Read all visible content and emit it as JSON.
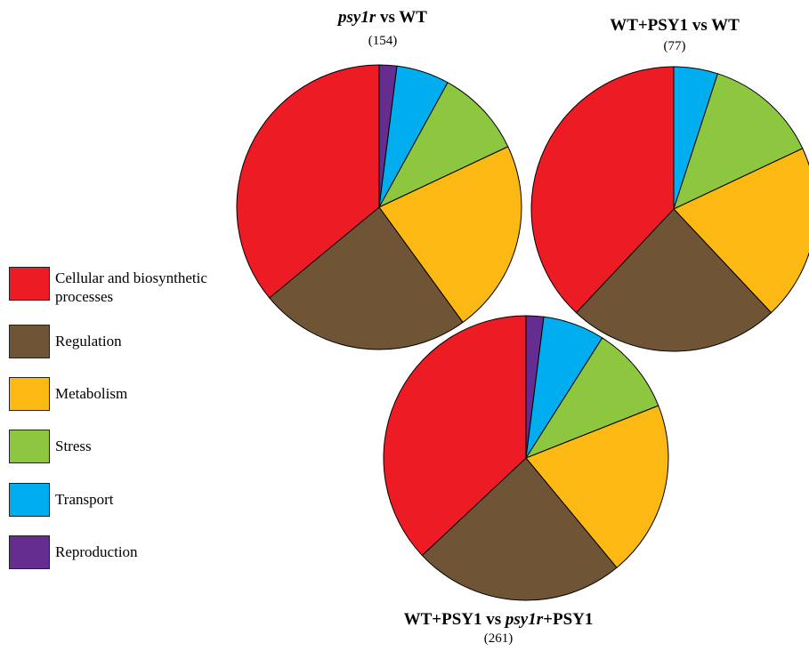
{
  "colors": {
    "cellular": "#ED1C24",
    "regulation": "#6F5536",
    "metabolism": "#FDB913",
    "stress": "#8DC63F",
    "transport": "#00AEEF",
    "reproduction": "#662D91"
  },
  "legend": [
    {
      "key": "cellular",
      "label": "Cellular and biosynthetic processes"
    },
    {
      "key": "regulation",
      "label": "Regulation"
    },
    {
      "key": "metabolism",
      "label": "Metabolism"
    },
    {
      "key": "stress",
      "label": "Stress"
    },
    {
      "key": "transport",
      "label": "Transport"
    },
    {
      "key": "reproduction",
      "label": "Reproduction"
    }
  ],
  "chart_data": [
    {
      "type": "pie",
      "title_parts": [
        {
          "text": "psy1r",
          "italic": true
        },
        {
          "text": " vs WT",
          "italic": false
        }
      ],
      "count": "(154)",
      "slices": [
        {
          "key": "reproduction",
          "label": "Reproduction",
          "value": 2
        },
        {
          "key": "transport",
          "label": "Transport",
          "value": 6
        },
        {
          "key": "stress",
          "label": "Stress",
          "value": 10
        },
        {
          "key": "metabolism",
          "label": "Metabolism",
          "value": 22
        },
        {
          "key": "regulation",
          "label": "Regulation",
          "value": 24
        },
        {
          "key": "cellular",
          "label": "Cellular and biosynthetic processes",
          "value": 36
        }
      ]
    },
    {
      "type": "pie",
      "title_parts": [
        {
          "text": "WT+PSY1 vs WT",
          "italic": false
        }
      ],
      "count": "(77)",
      "slices": [
        {
          "key": "transport",
          "label": "Transport",
          "value": 5
        },
        {
          "key": "stress",
          "label": "Stress",
          "value": 13
        },
        {
          "key": "metabolism",
          "label": "Metabolism",
          "value": 20
        },
        {
          "key": "regulation",
          "label": "Regulation",
          "value": 24
        },
        {
          "key": "cellular",
          "label": "Cellular and biosynthetic processes",
          "value": 38
        }
      ]
    },
    {
      "type": "pie",
      "title_parts": [
        {
          "text": "WT+PSY1 vs ",
          "italic": false
        },
        {
          "text": "psy1r",
          "italic": true
        },
        {
          "text": "+PSY1",
          "italic": false
        }
      ],
      "count": "(261)",
      "slices": [
        {
          "key": "reproduction",
          "label": "Reproduction",
          "value": 2
        },
        {
          "key": "transport",
          "label": "Transport",
          "value": 7
        },
        {
          "key": "stress",
          "label": "Stress",
          "value": 10
        },
        {
          "key": "metabolism",
          "label": "Metabolism",
          "value": 20
        },
        {
          "key": "regulation",
          "label": "Regulation",
          "value": 24
        },
        {
          "key": "cellular",
          "label": "Cellular and biosynthetic processes",
          "value": 37
        }
      ]
    }
  ]
}
